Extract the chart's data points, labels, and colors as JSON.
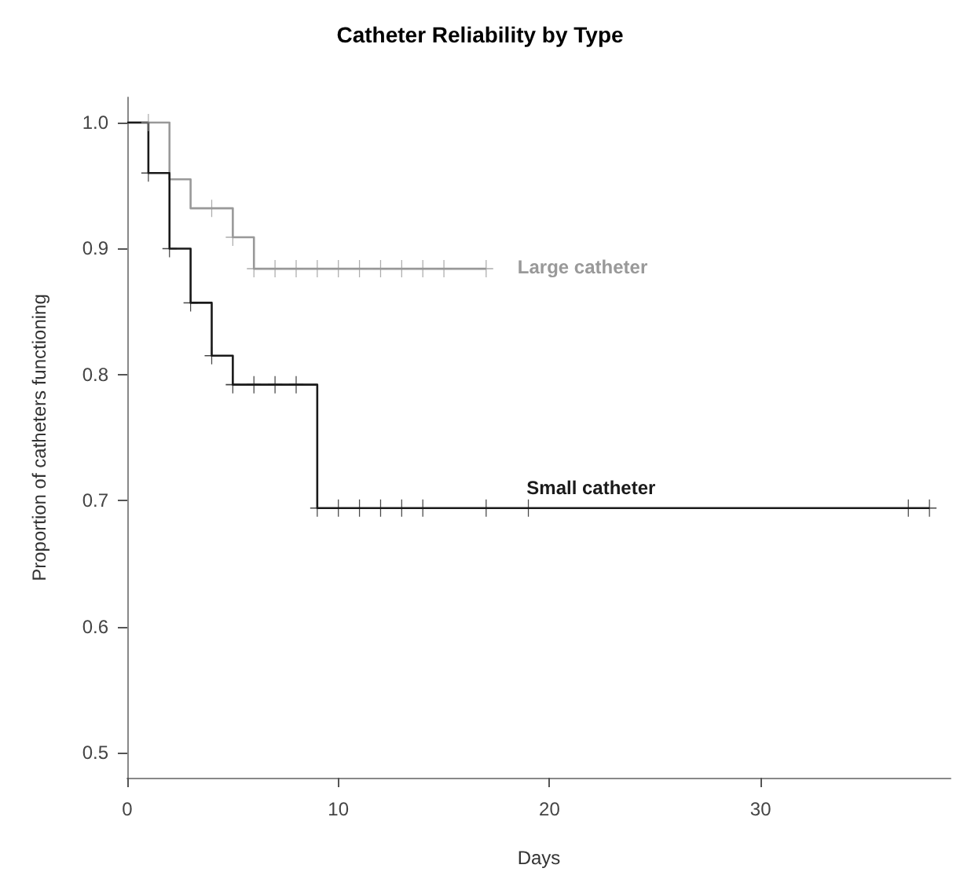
{
  "chart_data": {
    "type": "step",
    "title": "Catheter Reliability by Type",
    "xlabel": "Days",
    "ylabel": "Proportion of catheters functioning",
    "xlim": [
      0,
      39
    ],
    "xticks": [
      0,
      10,
      20,
      30
    ],
    "ylim": [
      0.48,
      1.02
    ],
    "yticks": [
      {
        "value": 0.5,
        "label": "0.5"
      },
      {
        "value": 0.6,
        "label": "0.6"
      },
      {
        "value": 0.7,
        "label": "0.7"
      },
      {
        "value": 0.8,
        "label": "0.8"
      },
      {
        "value": 0.9,
        "label": "0.9"
      },
      {
        "value": 1,
        "label": "1.0"
      }
    ],
    "grid": false,
    "legend": false,
    "marker": "none",
    "series": [
      {
        "name": "Large catheter",
        "color": "#999999",
        "x": [
          0,
          2,
          3,
          5,
          6,
          17
        ],
        "values": [
          1,
          0.955,
          0.932,
          0.909,
          0.884,
          0.884
        ]
      },
      {
        "type": "scatter",
        "marker": "cross",
        "color": "#999999",
        "x": [
          1,
          4,
          5,
          6,
          7,
          8,
          9,
          10,
          11,
          12,
          13,
          14,
          15,
          17
        ],
        "values": [
          1,
          0.932,
          0.909,
          0.884,
          0.884,
          0.884,
          0.884,
          0.884,
          0.884,
          0.884,
          0.884,
          0.884,
          0.884,
          0.884
        ]
      },
      {
        "name": "Small catheter",
        "color": "#1a1a1a",
        "x": [
          0,
          1,
          2,
          3,
          4,
          5,
          9,
          38
        ],
        "values": [
          1,
          0.96,
          0.9,
          0.857,
          0.815,
          0.792,
          0.694,
          0.694
        ]
      },
      {
        "type": "scatter",
        "marker": "cross",
        "color": "#1a1a1a",
        "x": [
          1,
          2,
          3,
          4,
          5,
          6,
          7,
          8,
          9,
          10,
          11,
          12,
          13,
          14,
          17,
          19,
          37,
          38
        ],
        "values": [
          0.96,
          0.9,
          0.857,
          0.815,
          0.792,
          0.792,
          0.792,
          0.792,
          0.694,
          0.694,
          0.694,
          0.694,
          0.694,
          0.694,
          0.694,
          0.694,
          0.694,
          0.694
        ]
      }
    ]
  }
}
